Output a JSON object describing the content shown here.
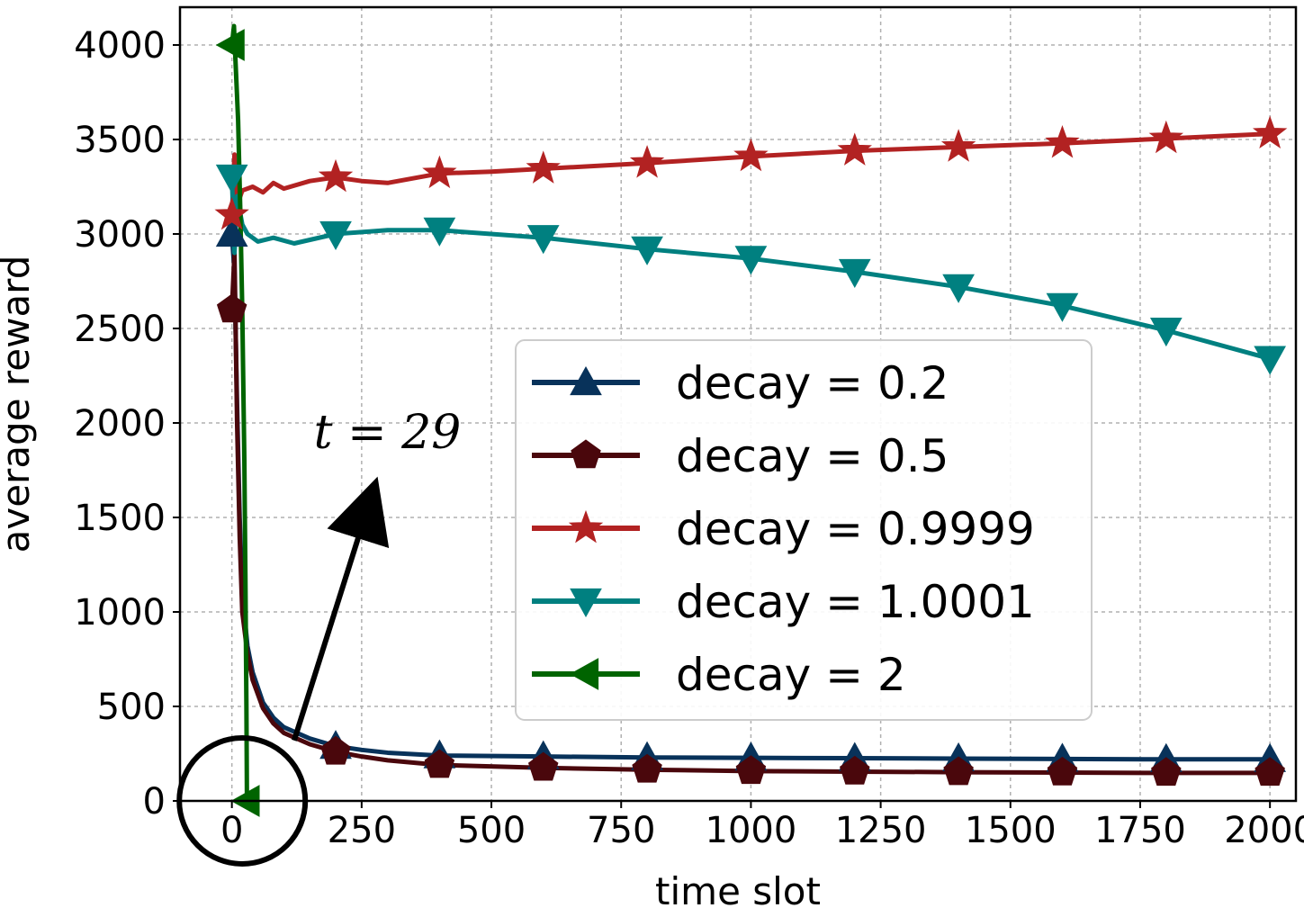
{
  "chart_data": {
    "type": "line",
    "title": "",
    "xlabel": "time slot",
    "ylabel": "average reward",
    "xlim": [
      -100,
      2050
    ],
    "ylim": [
      0,
      4200
    ],
    "xticks": [
      0,
      250,
      500,
      750,
      1000,
      1250,
      1500,
      1750,
      2000
    ],
    "yticks": [
      0,
      500,
      1000,
      1500,
      2000,
      2500,
      3000,
      3500,
      4000
    ],
    "grid": true,
    "legend_position": "center-right",
    "series": [
      {
        "name": "decay = 0.2",
        "color": "#08325a",
        "marker": "triangle-up",
        "points": [
          [
            0,
            3000
          ],
          [
            5,
            2800
          ],
          [
            10,
            2100
          ],
          [
            15,
            1500
          ],
          [
            20,
            1100
          ],
          [
            30,
            820
          ],
          [
            40,
            680
          ],
          [
            60,
            520
          ],
          [
            80,
            440
          ],
          [
            100,
            390
          ],
          [
            150,
            330
          ],
          [
            200,
            290
          ],
          [
            250,
            270
          ],
          [
            300,
            255
          ],
          [
            400,
            240
          ],
          [
            600,
            235
          ],
          [
            800,
            230
          ],
          [
            1000,
            228
          ],
          [
            1200,
            226
          ],
          [
            1400,
            224
          ],
          [
            1600,
            222
          ],
          [
            1800,
            220
          ],
          [
            2000,
            220
          ]
        ]
      },
      {
        "name": "decay = 0.5",
        "color": "#4a070c",
        "marker": "pentagon",
        "points": [
          [
            0,
            2600
          ],
          [
            5,
            2900
          ],
          [
            10,
            2000
          ],
          [
            15,
            1400
          ],
          [
            20,
            1000
          ],
          [
            30,
            780
          ],
          [
            40,
            640
          ],
          [
            60,
            490
          ],
          [
            80,
            410
          ],
          [
            100,
            360
          ],
          [
            150,
            300
          ],
          [
            200,
            260
          ],
          [
            250,
            235
          ],
          [
            300,
            215
          ],
          [
            400,
            190
          ],
          [
            600,
            175
          ],
          [
            800,
            165
          ],
          [
            1000,
            158
          ],
          [
            1200,
            155
          ],
          [
            1400,
            152
          ],
          [
            1600,
            150
          ],
          [
            1800,
            148
          ],
          [
            2000,
            148
          ]
        ]
      },
      {
        "name": "decay = 0.9999",
        "color": "#b22222",
        "marker": "star",
        "points": [
          [
            0,
            3100
          ],
          [
            5,
            3420
          ],
          [
            10,
            3150
          ],
          [
            20,
            3230
          ],
          [
            40,
            3250
          ],
          [
            60,
            3220
          ],
          [
            80,
            3270
          ],
          [
            100,
            3240
          ],
          [
            150,
            3280
          ],
          [
            200,
            3300
          ],
          [
            250,
            3280
          ],
          [
            300,
            3270
          ],
          [
            400,
            3320
          ],
          [
            500,
            3330
          ],
          [
            600,
            3345
          ],
          [
            800,
            3375
          ],
          [
            1000,
            3410
          ],
          [
            1200,
            3440
          ],
          [
            1400,
            3460
          ],
          [
            1600,
            3480
          ],
          [
            1800,
            3505
          ],
          [
            2000,
            3530
          ]
        ]
      },
      {
        "name": "decay = 1.0001",
        "color": "#008080",
        "marker": "triangle-down",
        "points": [
          [
            0,
            3300
          ],
          [
            5,
            2900
          ],
          [
            10,
            3200
          ],
          [
            20,
            3050
          ],
          [
            30,
            3000
          ],
          [
            50,
            2960
          ],
          [
            80,
            2980
          ],
          [
            120,
            2950
          ],
          [
            160,
            2975
          ],
          [
            200,
            3000
          ],
          [
            250,
            3010
          ],
          [
            300,
            3020
          ],
          [
            400,
            3020
          ],
          [
            600,
            2980
          ],
          [
            800,
            2920
          ],
          [
            1000,
            2870
          ],
          [
            1200,
            2800
          ],
          [
            1400,
            2720
          ],
          [
            1600,
            2620
          ],
          [
            1800,
            2490
          ],
          [
            2000,
            2340
          ]
        ]
      },
      {
        "name": "decay = 2",
        "color": "#006400",
        "marker": "triangle-left",
        "points": [
          [
            0,
            4000
          ],
          [
            4,
            4100
          ],
          [
            8,
            3850
          ],
          [
            12,
            3600
          ],
          [
            16,
            3150
          ],
          [
            20,
            2600
          ],
          [
            24,
            1800
          ],
          [
            26,
            1200
          ],
          [
            28,
            500
          ],
          [
            29,
            0
          ]
        ]
      }
    ],
    "annotation": {
      "text": "t = 29",
      "arrow_from": [
        120,
        320
      ],
      "arrow_to": [
        265,
        1580
      ],
      "circle_center": [
        20,
        0
      ]
    }
  }
}
